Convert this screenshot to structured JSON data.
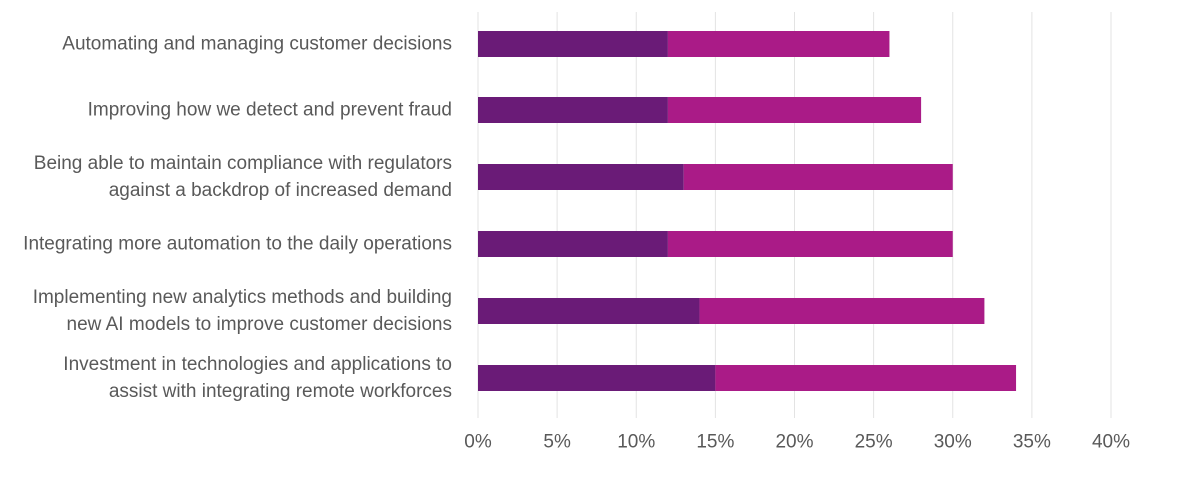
{
  "chart_data": {
    "type": "bar",
    "orientation": "horizontal",
    "stacked": true,
    "categories": [
      [
        "Automating and managing customer decisions"
      ],
      [
        "Improving how we detect and prevent fraud"
      ],
      [
        "Being able to maintain compliance with regulators",
        "against a backdrop of increased demand"
      ],
      [
        "Integrating more automation to the daily operations"
      ],
      [
        "Implementing new analytics methods and building",
        "new AI models to improve customer decisions"
      ],
      [
        "Investment in technologies and applications to",
        "assist with integrating remote workforces"
      ]
    ],
    "series": [
      {
        "color": "#6a1b77",
        "values": [
          12,
          12,
          13,
          12,
          14,
          15
        ]
      },
      {
        "color": "#aa1b87",
        "values": [
          14,
          16,
          17,
          18,
          18,
          19
        ]
      }
    ],
    "xlim": [
      0,
      40
    ],
    "xticks": [
      0,
      5,
      10,
      15,
      20,
      25,
      30,
      35,
      40
    ],
    "tick_suffix": "%",
    "grid": true,
    "gridline_color": "#e3e3e3",
    "legend": "none"
  }
}
